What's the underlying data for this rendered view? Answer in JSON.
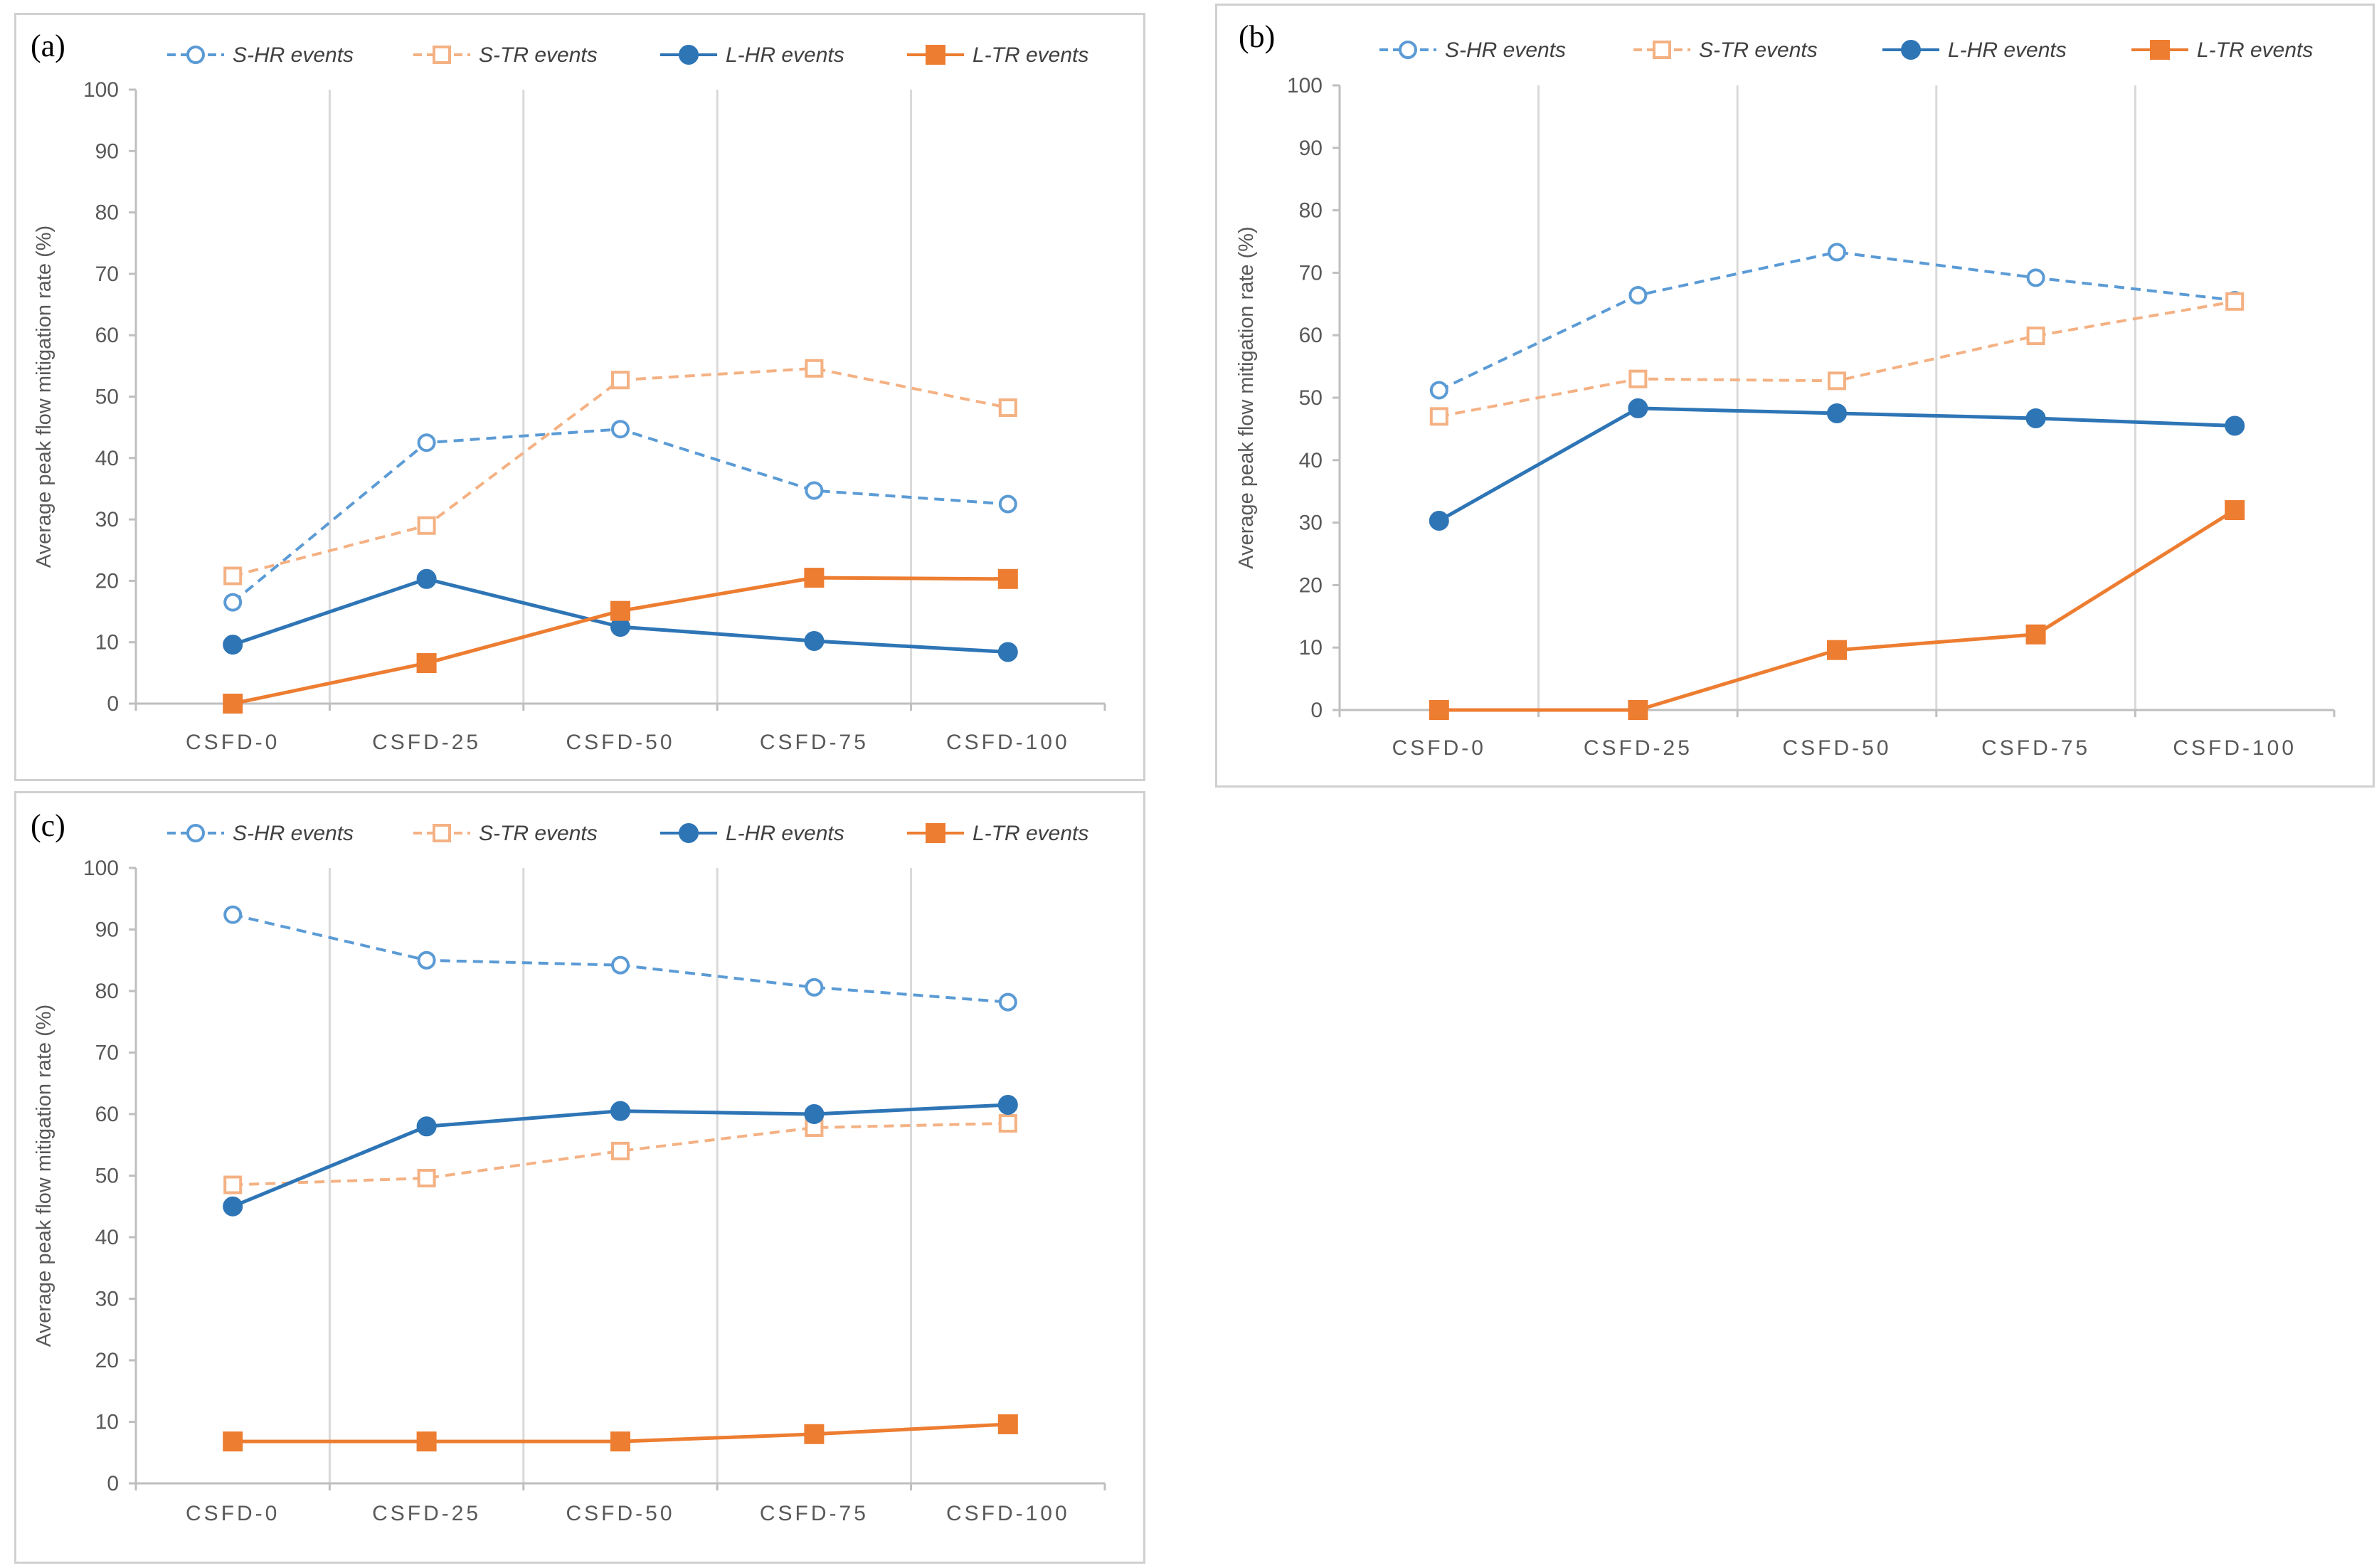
{
  "legend_labels": [
    "S-HR events",
    "S-TR events",
    "L-HR events",
    "L-TR events"
  ],
  "colors": {
    "S-HR events": "#5b9bd5",
    "S-TR events": "#f4b183",
    "L-HR events": "#2e75b6",
    "L-TR events": "#ed7d31",
    "grid": "#d9d9d9",
    "axis": "#bfbfbf",
    "text": "#595959"
  },
  "chart_data": [
    {
      "panel": "(a)",
      "type": "line",
      "categories": [
        "CSFD-0",
        "CSFD-25",
        "CSFD-50",
        "CSFD-75",
        "CSFD-100"
      ],
      "ylabel": "Average peak flow mitigation rate (%)",
      "ylim": [
        0,
        100
      ],
      "yticks": [
        0,
        10,
        20,
        30,
        40,
        50,
        60,
        70,
        80,
        90,
        100
      ],
      "series": [
        {
          "name": "S-HR events",
          "values": [
            16.5,
            42.5,
            44.7,
            34.7,
            32.5
          ]
        },
        {
          "name": "S-TR events",
          "values": [
            20.8,
            29.0,
            52.7,
            54.6,
            48.2
          ]
        },
        {
          "name": "L-HR events",
          "values": [
            9.6,
            20.3,
            12.5,
            10.2,
            8.4
          ]
        },
        {
          "name": "L-TR events",
          "values": [
            0,
            6.6,
            15.1,
            20.5,
            20.3
          ]
        }
      ]
    },
    {
      "panel": "(b)",
      "type": "line",
      "categories": [
        "CSFD-0",
        "CSFD-25",
        "CSFD-50",
        "CSFD-75",
        "CSFD-100"
      ],
      "ylabel": "Average peak flow mitigation rate (%)",
      "ylim": [
        0,
        100
      ],
      "yticks": [
        0,
        10,
        20,
        30,
        40,
        50,
        60,
        70,
        80,
        90,
        100
      ],
      "series": [
        {
          "name": "S-HR events",
          "values": [
            51.2,
            66.4,
            73.3,
            69.2,
            65.6
          ]
        },
        {
          "name": "S-TR events",
          "values": [
            47.0,
            53.0,
            52.7,
            59.9,
            65.4
          ]
        },
        {
          "name": "L-HR events",
          "values": [
            30.3,
            48.3,
            47.5,
            46.7,
            45.5
          ]
        },
        {
          "name": "L-TR events",
          "values": [
            0,
            0,
            9.6,
            12.1,
            32.0
          ]
        }
      ]
    },
    {
      "panel": "(c)",
      "type": "line",
      "categories": [
        "CSFD-0",
        "CSFD-25",
        "CSFD-50",
        "CSFD-75",
        "CSFD-100"
      ],
      "ylabel": "Average peak flow mitigation rate (%)",
      "ylim": [
        0,
        100
      ],
      "yticks": [
        0,
        10,
        20,
        30,
        40,
        50,
        60,
        70,
        80,
        90,
        100
      ],
      "series": [
        {
          "name": "S-HR events",
          "values": [
            92.4,
            85.0,
            84.2,
            80.6,
            78.2
          ]
        },
        {
          "name": "S-TR events",
          "values": [
            48.5,
            49.6,
            54.0,
            57.8,
            58.5
          ]
        },
        {
          "name": "L-HR events",
          "values": [
            45.0,
            58.0,
            60.5,
            60.0,
            61.5
          ]
        },
        {
          "name": "L-TR events",
          "values": [
            6.8,
            6.8,
            6.8,
            8.0,
            9.6
          ]
        }
      ]
    }
  ]
}
